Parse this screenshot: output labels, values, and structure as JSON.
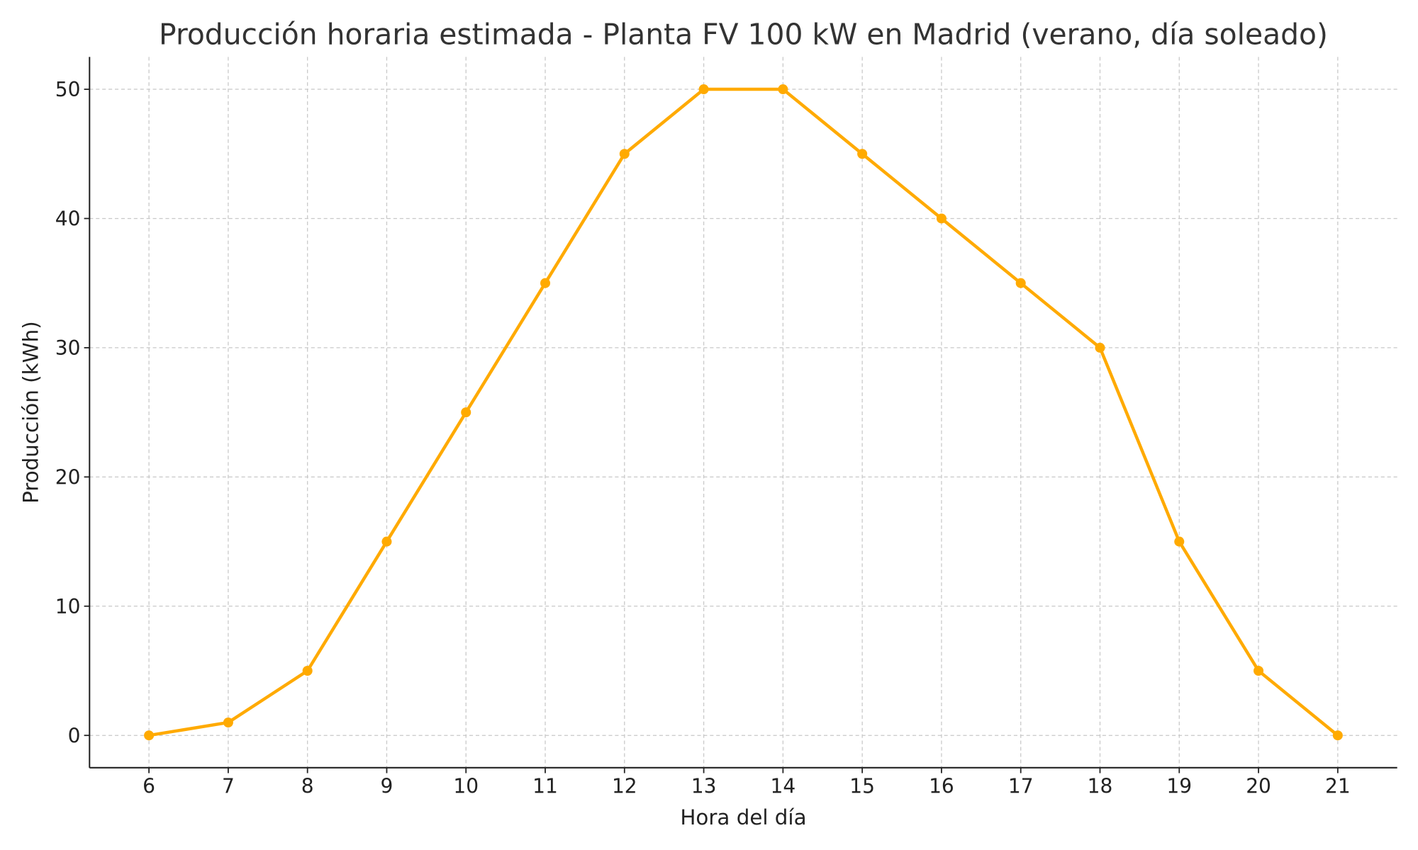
{
  "chart_data": {
    "type": "line",
    "title": "Producción horaria estimada - Planta FV 100 kW en Madrid (verano, día soleado)",
    "xlabel": "Hora del día",
    "ylabel": "Producción (kWh)",
    "x": [
      6,
      7,
      8,
      9,
      10,
      11,
      12,
      13,
      14,
      15,
      16,
      17,
      18,
      19,
      20,
      21
    ],
    "series": [
      {
        "name": "Producción",
        "values": [
          0,
          1,
          5,
          15,
          25,
          35,
          45,
          50,
          50,
          45,
          40,
          35,
          30,
          15,
          5,
          0
        ],
        "color": "#FFAA00"
      }
    ],
    "xticks": [
      "6",
      "7",
      "8",
      "9",
      "10",
      "11",
      "12",
      "13",
      "14",
      "15",
      "16",
      "17",
      "18",
      "19",
      "20",
      "21"
    ],
    "yticks": [
      "0",
      "10",
      "20",
      "30",
      "40",
      "50"
    ],
    "xlim": [
      5.25,
      21.75
    ],
    "ylim": [
      -2.5,
      52.5
    ],
    "grid": true,
    "marker": "circle"
  }
}
